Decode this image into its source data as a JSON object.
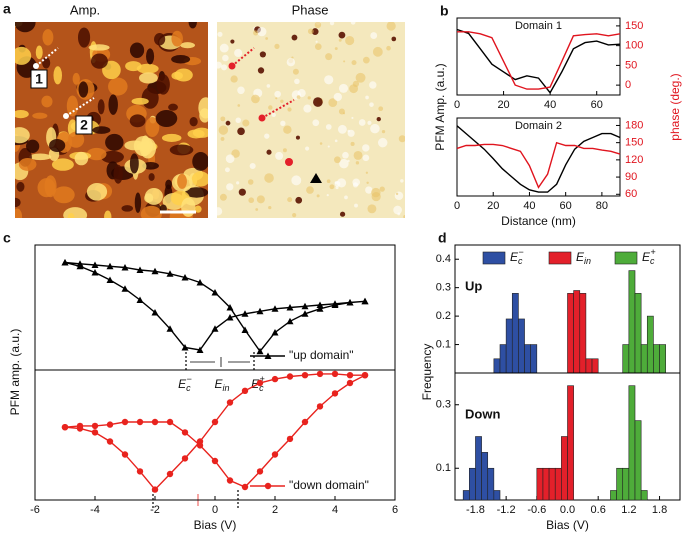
{
  "images": {
    "panel": "a",
    "amp_title": "Amp.",
    "phase_title": "Phase",
    "markers": [
      "1",
      "2"
    ]
  },
  "chart_data": [
    {
      "type": "line",
      "panel": "b",
      "title": "Domain 1",
      "ylabel": "PFM Amp. (a.u.)",
      "y2label": "phase (deg.)",
      "x": [
        0,
        5,
        10,
        15,
        20,
        25,
        30,
        35,
        40,
        45,
        50,
        55,
        60,
        65,
        70
      ],
      "xlim": [
        0,
        70
      ],
      "xticks": [
        0,
        20,
        40,
        60
      ],
      "ylim": [
        0,
        1
      ],
      "y2lim": [
        -25,
        170
      ],
      "y2ticks": [
        0,
        50,
        100,
        150
      ],
      "series": [
        {
          "color": "#000000",
          "values": [
            0.85,
            0.8,
            0.6,
            0.4,
            0.3,
            0.2,
            0.25,
            0.22,
            0.03,
            0.3,
            0.6,
            0.68,
            0.7,
            0.65,
            0.66
          ]
        },
        {
          "color": "#e0141e",
          "axis": "y2",
          "values": [
            135,
            135,
            130,
            120,
            60,
            0,
            -10,
            -10,
            -5,
            60,
            125,
            128,
            130,
            125,
            130
          ]
        }
      ]
    },
    {
      "type": "line",
      "title": "Domain 2",
      "xlabel": "Distance (nm)",
      "x": [
        0,
        5,
        10,
        15,
        20,
        25,
        30,
        35,
        40,
        45,
        50,
        55,
        60,
        65,
        70,
        75,
        80,
        85,
        90
      ],
      "xlim": [
        0,
        90
      ],
      "xticks": [
        0,
        20,
        40,
        60,
        80
      ],
      "ylim": [
        0,
        1
      ],
      "y2lim": [
        57,
        193
      ],
      "y2ticks": [
        60,
        90,
        120,
        150,
        180
      ],
      "series": [
        {
          "color": "#000000",
          "values": [
            0.9,
            0.8,
            0.7,
            0.6,
            0.48,
            0.35,
            0.25,
            0.15,
            0.08,
            0.05,
            0.05,
            0.15,
            0.4,
            0.6,
            0.7,
            0.75,
            0.8,
            0.8,
            0.75
          ]
        },
        {
          "color": "#e0141e",
          "axis": "y2",
          "values": [
            140,
            145,
            145,
            147,
            147,
            145,
            140,
            135,
            110,
            72,
            95,
            150,
            145,
            145,
            140,
            140,
            137,
            135,
            130
          ]
        }
      ]
    },
    {
      "type": "line",
      "panel": "c",
      "ylabel": "PFM amp. (a.u.)",
      "xlim": [
        -6,
        6
      ],
      "ylim": [
        0,
        1
      ],
      "legend": "lower right",
      "annotations": [
        {
          "main": "E",
          "sub": "c",
          "sup": "−"
        },
        {
          "main": "E",
          "sub": "in"
        },
        {
          "main": "E",
          "sub": "c",
          "sup": "+"
        }
      ],
      "series": [
        {
          "name": "\"up domain\"",
          "color": "#000000",
          "marker": "triangle",
          "x": [
            -5,
            -4.5,
            -4,
            -3.5,
            -3,
            -2.5,
            -2,
            -1.5,
            -1,
            -0.5,
            0,
            0.5,
            1,
            1.5,
            2,
            2.5,
            3,
            3.5,
            4,
            4.5,
            5,
            5,
            4.5,
            4,
            3.5,
            3,
            2.5,
            2,
            1.5,
            1,
            0.5,
            0,
            -0.5,
            -1,
            -1.5,
            -2,
            -2.5,
            -3,
            -3.5,
            -4,
            -4.5,
            -5
          ],
          "values": [
            0.86,
            0.83,
            0.78,
            0.72,
            0.65,
            0.56,
            0.46,
            0.33,
            0.18,
            0.16,
            0.33,
            0.42,
            0.45,
            0.47,
            0.49,
            0.5,
            0.51,
            0.52,
            0.53,
            0.54,
            0.55,
            0.55,
            0.54,
            0.52,
            0.49,
            0.45,
            0.39,
            0.3,
            0.15,
            0.32,
            0.5,
            0.62,
            0.7,
            0.74,
            0.77,
            0.79,
            0.8,
            0.82,
            0.83,
            0.84,
            0.85,
            0.86
          ]
        }
      ]
    },
    {
      "type": "line",
      "xlabel": "Bias (V)",
      "xlim": [
        -6,
        6
      ],
      "xticks": [
        -6,
        -4,
        -2,
        0,
        2,
        4,
        6
      ],
      "ylim": [
        0,
        1
      ],
      "legend": "lower right",
      "series": [
        {
          "name": "\"down domain\"",
          "color": "#e8231e",
          "marker": "circle",
          "x": [
            -5,
            -4.5,
            -4,
            -3.5,
            -3,
            -2.5,
            -2,
            -1.5,
            -1,
            -0.5,
            0,
            0.5,
            1,
            1.5,
            2,
            2.5,
            3,
            3.5,
            4,
            4.5,
            5,
            5,
            4.5,
            4,
            3.5,
            3,
            2.5,
            2,
            1.5,
            1,
            0.5,
            0,
            -0.5,
            -1,
            -1.5,
            -2,
            -2.5,
            -3,
            -3.5,
            -4,
            -4.5,
            -5
          ],
          "values": [
            0.56,
            0.55,
            0.52,
            0.45,
            0.35,
            0.22,
            0.08,
            0.2,
            0.32,
            0.45,
            0.6,
            0.75,
            0.84,
            0.9,
            0.93,
            0.95,
            0.96,
            0.97,
            0.97,
            0.96,
            0.96,
            0.96,
            0.9,
            0.82,
            0.72,
            0.6,
            0.47,
            0.35,
            0.22,
            0.1,
            0.15,
            0.3,
            0.42,
            0.52,
            0.6,
            0.6,
            0.6,
            0.6,
            0.58,
            0.57,
            0.57,
            0.56
          ]
        }
      ]
    },
    {
      "type": "histogram",
      "panel": "d",
      "title": "Up",
      "ylabel": "Frequency",
      "xlim": [
        -2.2,
        2.2
      ],
      "ylim": [
        0,
        0.45
      ],
      "yticks": [
        0.1,
        0.2,
        0.3,
        0.4
      ],
      "series": [
        {
          "name": {
            "main": "E",
            "sub": "c",
            "sup": "−"
          },
          "color": "#2e4fa3",
          "bins": [
            -1.44,
            -1.32,
            -1.2,
            -1.08,
            -0.96,
            -0.84,
            -0.72,
            -0.6
          ],
          "values": [
            0.05,
            0.1,
            0.19,
            0.28,
            0.19,
            0.1,
            0.1
          ]
        },
        {
          "name": {
            "main": "E",
            "sub": "in"
          },
          "color": "#e3202a",
          "bins": [
            0,
            0.12,
            0.24,
            0.36,
            0.48,
            0.6
          ],
          "values": [
            0.28,
            0.29,
            0.28,
            0.05,
            0.05
          ]
        },
        {
          "name": {
            "main": "E",
            "sub": "c",
            "sup": "+"
          },
          "color": "#4eac3a",
          "bins": [
            1.08,
            1.2,
            1.32,
            1.44,
            1.56,
            1.68,
            1.8,
            1.92
          ],
          "values": [
            0.1,
            0.36,
            0.28,
            0.1,
            0.2,
            0.1,
            0.1
          ]
        }
      ]
    },
    {
      "type": "histogram",
      "title": "Down",
      "xlabel": "Bias (V)",
      "xlim": [
        -2.2,
        2.2
      ],
      "xticks": [
        -1.8,
        -1.2,
        -0.6,
        {
          "value": 0,
          "label": "0.0"
        },
        0.6,
        1.2,
        1.8
      ],
      "ylim": [
        0,
        0.4
      ],
      "yticks": [
        0.1,
        0.3
      ],
      "series": [
        {
          "color": "#2e4fa3",
          "bins": [
            -2.04,
            -1.92,
            -1.8,
            -1.68,
            -1.56,
            -1.44,
            -1.32
          ],
          "values": [
            0.03,
            0.1,
            0.2,
            0.15,
            0.1,
            0.03
          ]
        },
        {
          "color": "#e3202a",
          "bins": [
            -0.6,
            -0.48,
            -0.36,
            -0.24,
            -0.12,
            0,
            0.12
          ],
          "values": [
            0.1,
            0.1,
            0.1,
            0.1,
            0.2,
            0.36
          ]
        },
        {
          "color": "#4eac3a",
          "bins": [
            0.84,
            0.96,
            1.08,
            1.2,
            1.32,
            1.44,
            1.56
          ],
          "values": [
            0.03,
            0.1,
            0.1,
            0.36,
            0.25,
            0.03
          ]
        }
      ]
    }
  ]
}
